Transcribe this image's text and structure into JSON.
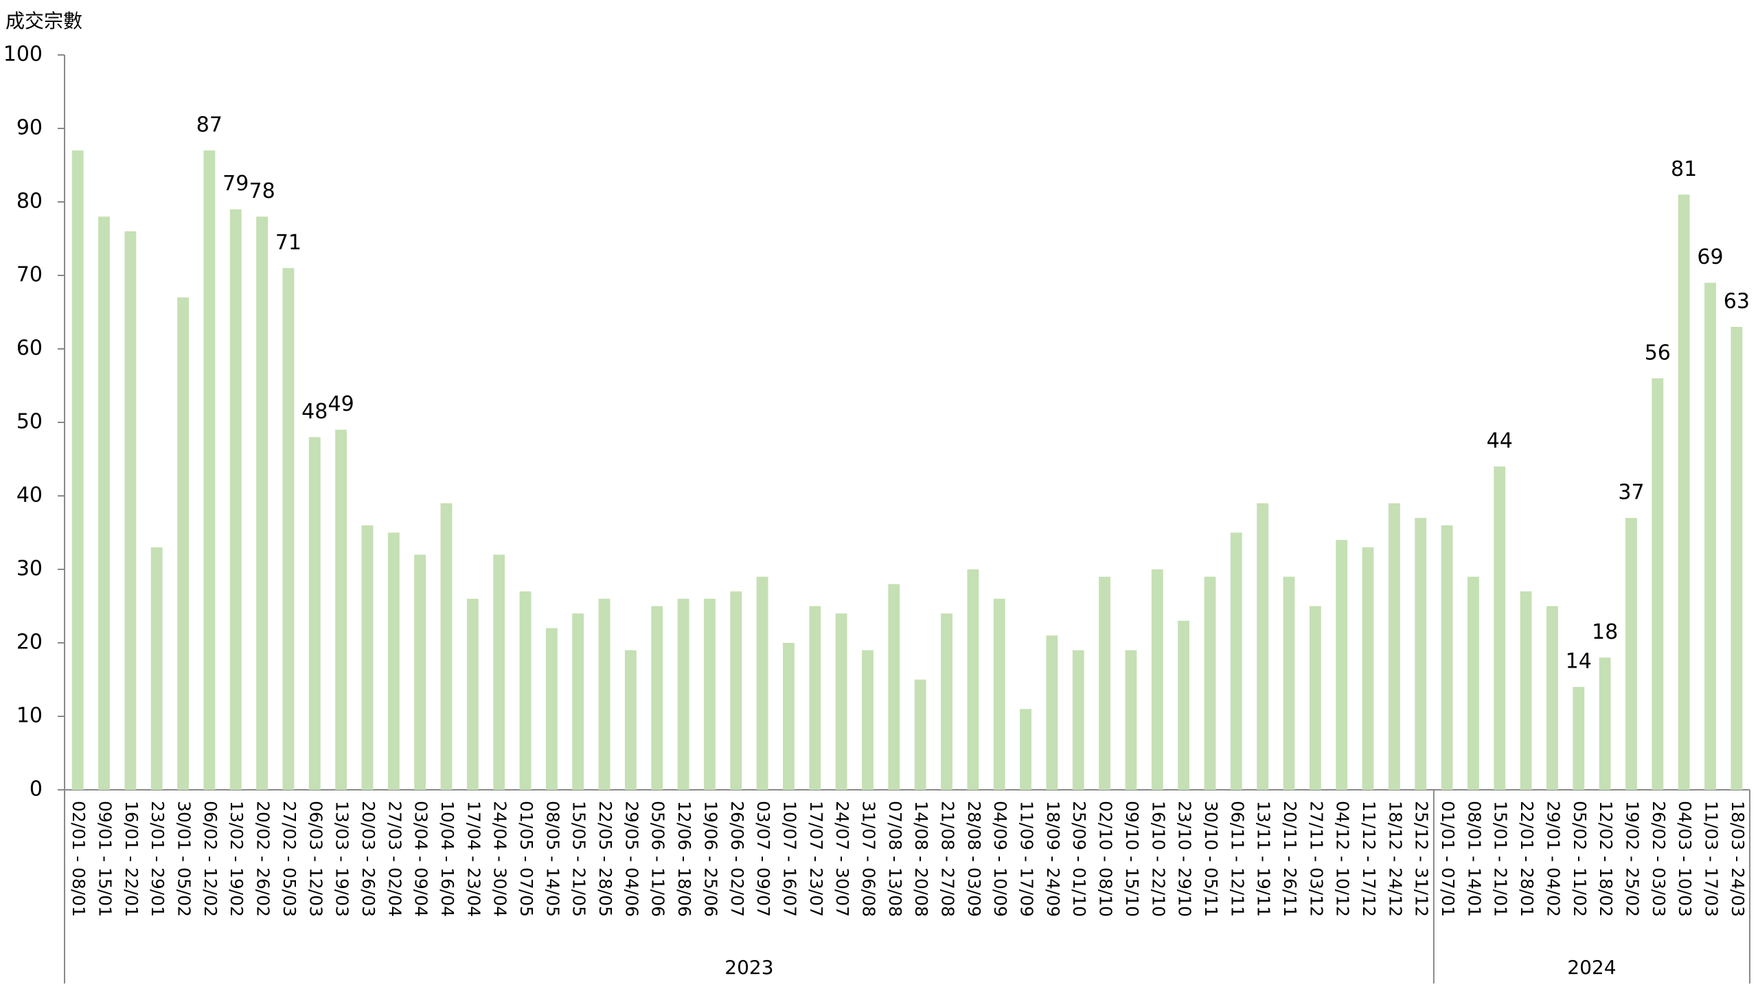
{
  "chart_data": {
    "type": "bar",
    "y_label": "成交宗數",
    "categories": [
      "02/01 - 08/01",
      "09/01 - 15/01",
      "16/01 - 22/01",
      "23/01 - 29/01",
      "30/01 - 05/02",
      "06/02 - 12/02",
      "13/02 - 19/02",
      "20/02 - 26/02",
      "27/02 - 05/03",
      "06/03 - 12/03",
      "13/03 - 19/03",
      "20/03 - 26/03",
      "27/03 - 02/04",
      "03/04 - 09/04",
      "10/04 - 16/04",
      "17/04 - 23/04",
      "24/04 - 30/04",
      "01/05 - 07/05",
      "08/05 - 14/05",
      "15/05 - 21/05",
      "22/05 - 28/05",
      "29/05 - 04/06",
      "05/06 - 11/06",
      "12/06 - 18/06",
      "19/06 - 25/06",
      "26/06 - 02/07",
      "03/07 - 09/07",
      "10/07 - 16/07",
      "17/07 - 23/07",
      "24/07 - 30/07",
      "31/07 - 06/08",
      "07/08 - 13/08",
      "14/08 - 20/08",
      "21/08 - 27/08",
      "28/08 - 03/09",
      "04/09 - 10/09",
      "11/09 - 17/09",
      "18/09 - 24/09",
      "25/09 - 01/10",
      "02/10 - 08/10",
      "09/10 - 15/10",
      "16/10 - 22/10",
      "23/10 - 29/10",
      "30/10 - 05/11",
      "06/11 - 12/11",
      "13/11 - 19/11",
      "20/11 - 26/11",
      "27/11 - 03/12",
      "04/12 - 10/12",
      "11/12 - 17/12",
      "18/12 - 24/12",
      "25/12 - 31/12",
      "01/01 - 07/01",
      "08/01 - 14/01",
      "15/01 - 21/01",
      "22/01 - 28/01",
      "29/01 - 04/02",
      "05/02 - 11/02",
      "12/02 - 18/02",
      "19/02 - 25/02",
      "26/02 - 03/03",
      "04/03 - 10/03",
      "11/03 - 17/03",
      "18/03 - 24/03"
    ],
    "values": [
      87,
      78,
      76,
      33,
      67,
      87,
      79,
      78,
      71,
      48,
      49,
      36,
      35,
      32,
      39,
      26,
      32,
      27,
      22,
      24,
      26,
      19,
      25,
      26,
      26,
      27,
      29,
      20,
      25,
      24,
      19,
      28,
      15,
      24,
      30,
      26,
      11,
      21,
      19,
      29,
      19,
      30,
      23,
      29,
      35,
      39,
      29,
      25,
      34,
      33,
      39,
      37,
      36,
      29,
      44,
      27,
      25,
      14,
      18,
      37,
      56,
      81,
      69,
      63
    ],
    "value_labels": [
      null,
      null,
      null,
      null,
      null,
      "87",
      "79",
      "78",
      "71",
      "48",
      "49",
      null,
      null,
      null,
      null,
      null,
      null,
      null,
      null,
      null,
      null,
      null,
      null,
      null,
      null,
      null,
      null,
      null,
      null,
      null,
      null,
      null,
      null,
      null,
      null,
      null,
      null,
      null,
      null,
      null,
      null,
      null,
      null,
      null,
      null,
      null,
      null,
      null,
      null,
      null,
      null,
      null,
      null,
      null,
      "44",
      null,
      null,
      "14",
      "18",
      "37",
      "56",
      "81",
      "69",
      "63"
    ],
    "groups": [
      {
        "label": "2023",
        "span": 52
      },
      {
        "label": "2024",
        "span": 12
      }
    ],
    "color": "#c5e0b4",
    "ylim": [
      0,
      100
    ],
    "yticks": [
      0,
      10,
      20,
      30,
      40,
      50,
      60,
      70,
      80,
      90,
      100
    ]
  }
}
